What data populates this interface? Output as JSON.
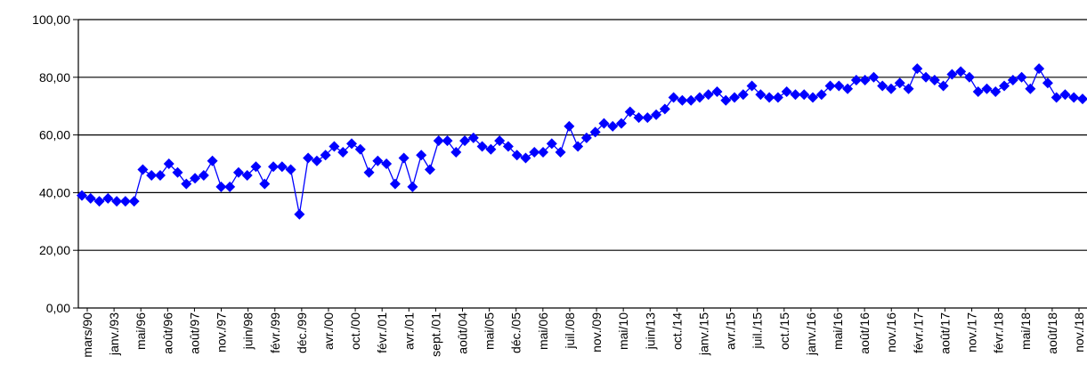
{
  "chart_data": {
    "type": "line",
    "title": "",
    "xlabel": "",
    "ylabel": "",
    "ylim": [
      0,
      100
    ],
    "y_ticks": [
      "0,00",
      "20,00",
      "40,00",
      "60,00",
      "80,00",
      "100,00"
    ],
    "grid": true,
    "marker": "diamond",
    "series_color": "#0000ff",
    "x_tick_labels": [
      "mars/90",
      "janv./93",
      "mai/96",
      "août/96",
      "août/97",
      "nov./97",
      "juin/98",
      "févr./99",
      "déc./99",
      "avr./00",
      "oct./00",
      "févr./01",
      "avr./01",
      "sept./01",
      "août/04",
      "mai/05",
      "déc./05",
      "mai/06",
      "juil./08",
      "nov./09",
      "mai/10",
      "juin/13",
      "oct./14",
      "janv./15",
      "avr./15",
      "juil./15",
      "oct./15",
      "janv./16",
      "mai/16",
      "août/16",
      "nov./16",
      "févr./17",
      "août/17",
      "nov./17",
      "févr./18",
      "mai/18",
      "août/18",
      "nov./18"
    ],
    "series": [
      {
        "values": [
          39,
          38,
          37,
          38,
          37,
          37,
          37,
          48,
          46,
          46,
          50,
          47,
          43,
          45,
          46,
          51,
          42,
          42,
          47,
          46,
          49,
          43,
          49,
          49,
          48,
          32.5,
          52,
          51,
          53,
          56,
          54,
          57,
          55,
          47,
          51,
          50,
          43,
          52,
          42,
          53,
          48,
          58,
          58,
          54,
          58,
          59,
          56,
          55,
          58,
          56,
          53,
          52,
          54,
          54,
          57,
          54,
          63,
          56,
          59,
          61,
          64,
          63,
          64,
          68,
          66,
          66,
          67,
          69,
          73,
          72,
          72,
          73,
          74,
          75,
          72,
          73,
          74,
          77,
          74,
          73,
          73,
          75,
          74,
          74,
          73,
          74,
          77,
          77,
          76,
          79,
          79,
          80,
          77,
          76,
          78,
          76,
          83,
          80,
          79,
          77,
          81,
          82,
          80,
          75,
          76,
          75,
          77,
          79,
          80,
          76,
          83,
          78,
          73,
          74,
          73,
          72.5
        ]
      }
    ]
  }
}
